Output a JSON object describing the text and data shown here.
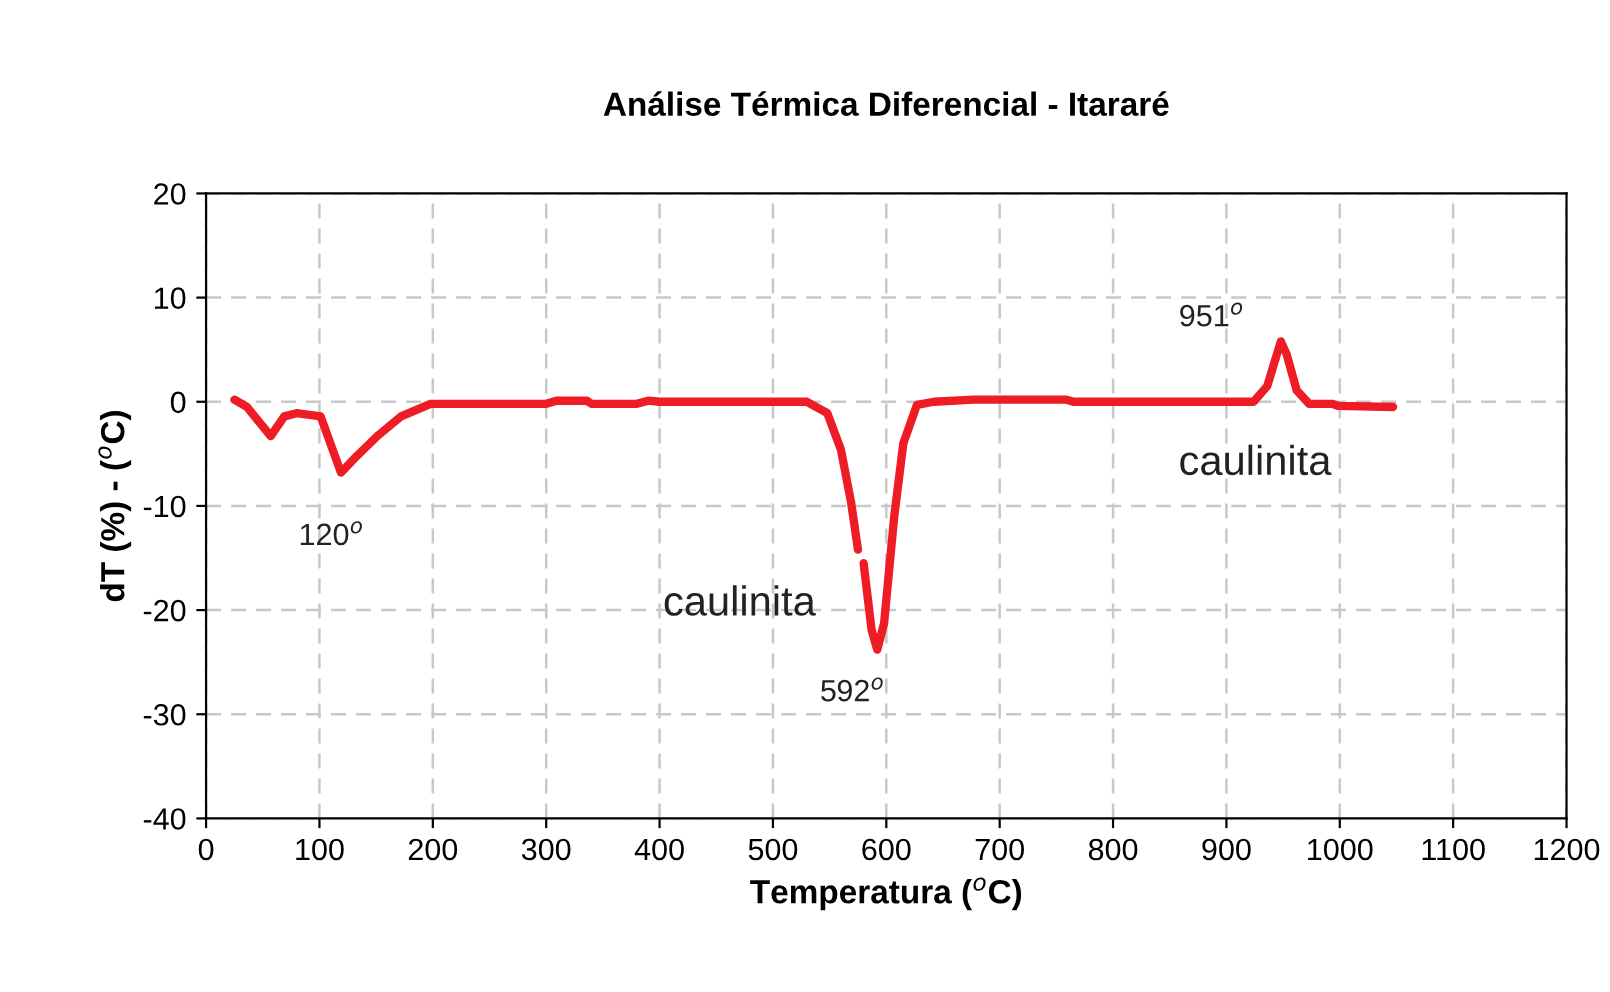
{
  "chart_data": {
    "type": "line",
    "title": "Análise Térmica Diferencial - Itararé",
    "xlabel": "Temperatura ($^{o}$C)",
    "ylabel": "dT (%) - ($^{o}$C)",
    "xlim": [
      0,
      1200
    ],
    "xticks": [
      0,
      100,
      200,
      300,
      400,
      500,
      600,
      700,
      800,
      900,
      1000,
      1100,
      1200
    ],
    "ylim": [
      -40,
      20
    ],
    "yticks": [
      -40,
      -30,
      -20,
      -10,
      0,
      10,
      20
    ],
    "grid": true,
    "line_style": "solid",
    "marker": "none",
    "series": [
      {
        "color": "#ee1c25",
        "x": [
          25,
          36,
          57,
          69,
          80,
          101,
          119,
          133,
          151,
          172,
          198,
          300,
          309,
          336,
          340,
          380,
          390,
          400,
          530,
          548,
          560,
          569,
          575,
          578,
          580,
          587,
          592,
          598,
          607,
          615,
          627,
          642,
          677,
          759,
          765,
          924,
          936,
          948,
          953,
          962,
          973,
          993,
          999,
          1047
        ],
        "values": [
          0.2,
          -0.5,
          -3.3,
          -1.4,
          -1.1,
          -1.4,
          -6.8,
          -5.2,
          -3.3,
          -1.4,
          -0.2,
          -0.2,
          0.1,
          0.1,
          -0.2,
          -0.2,
          0.1,
          0,
          0,
          -1.1,
          -4.6,
          -9.7,
          -14.2,
          null,
          -15.5,
          -21.9,
          -23.8,
          -21.3,
          -11,
          -4,
          -0.3,
          0,
          0.2,
          0.2,
          0,
          0,
          1.5,
          5.8,
          4.6,
          1.1,
          -0.2,
          -0.2,
          -0.4,
          -0.5
        ]
      }
    ],
    "annotations": [
      "120$^{o}$",
      "592$^{o}$",
      "951$^{o}$",
      "caulinita",
      "caulinita"
    ]
  }
}
